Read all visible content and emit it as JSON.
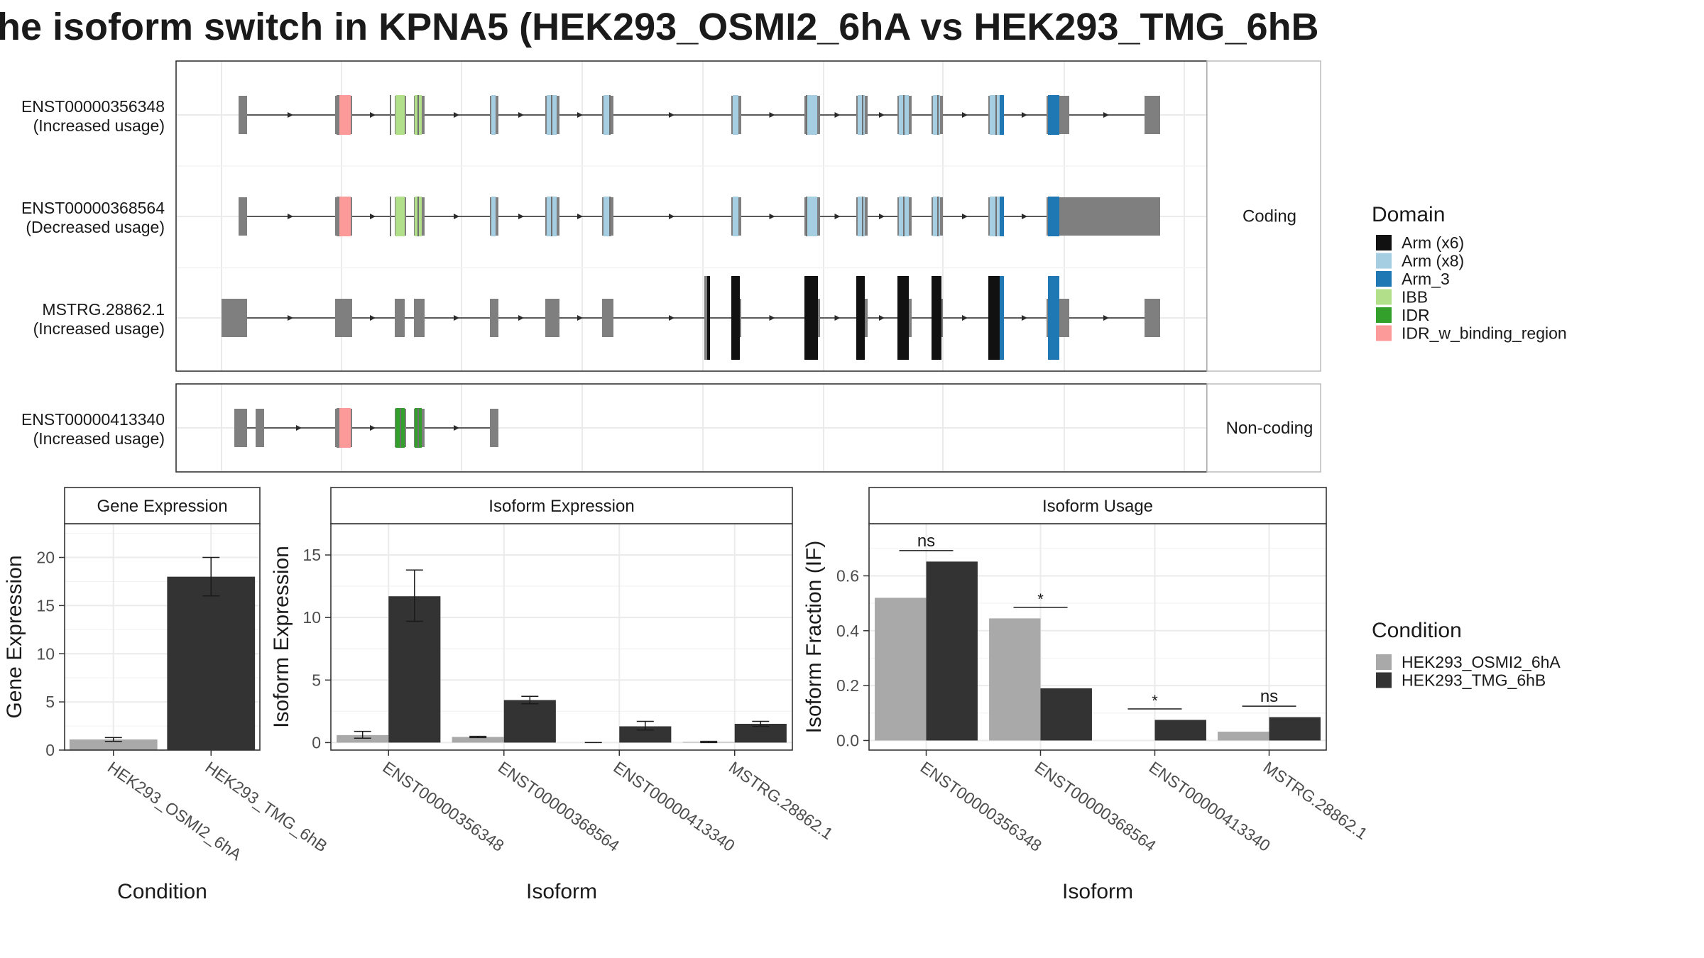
{
  "title": "he isoform switch in KPNA5 (HEK293_OSMI2_6hA vs HEK293_TMG_6hB",
  "colors": {
    "domains": {
      "Arm (x6)": "#111111",
      "Arm (x8)": "#a6cee3",
      "Arm_3": "#1f78b4",
      "IBB": "#b2df8a",
      "IDR": "#33a02c",
      "IDR_w_binding_region": "#fb9a99"
    },
    "exon": "#7f7f7f",
    "cond_a": "#a9a9a9",
    "cond_b": "#333333"
  },
  "structure": {
    "facets": [
      "Coding",
      "Non-coding"
    ],
    "isoforms": [
      {
        "id": "ENST00000356348",
        "note": "(Increased usage)"
      },
      {
        "id": "ENST00000368564",
        "note": "(Decreased usage)"
      },
      {
        "id": "MSTRG.28862.1",
        "note": "(Increased usage)"
      },
      {
        "id": "ENST00000413340",
        "note": "(Increased usage)"
      }
    ]
  },
  "legend": {
    "domain_title": "Domain",
    "domain_items": [
      "Arm (x6)",
      "Arm (x8)",
      "Arm_3",
      "IBB",
      "IDR",
      "IDR_w_binding_region"
    ],
    "condition_title": "Condition",
    "condition_items": [
      "HEK293_OSMI2_6hA",
      "HEK293_TMG_6hB"
    ]
  },
  "chart_data": [
    {
      "type": "bar",
      "title": "Gene Expression",
      "xlabel": "Condition",
      "ylabel": "Gene Expression",
      "categories": [
        "HEK293_OSMI2_6hA",
        "HEK293_TMG_6hB"
      ],
      "values": [
        1.1,
        18.0
      ],
      "error_low": [
        0.9,
        16.0
      ],
      "error_high": [
        1.3,
        20.0
      ],
      "ylim": [
        0,
        23.5
      ],
      "yticks": [
        0,
        5,
        10,
        15,
        20
      ]
    },
    {
      "type": "bar",
      "title": "Isoform Expression",
      "xlabel": "Isoform",
      "ylabel": "Isoform Expression",
      "categories": [
        "ENST00000356348",
        "ENST00000368564",
        "ENST00000413340",
        "MSTRG.28862.1"
      ],
      "series": [
        {
          "name": "HEK293_OSMI2_6hA",
          "values": [
            0.6,
            0.45,
            0.0,
            0.05
          ],
          "error_low": [
            0.35,
            0.4,
            0.0,
            0.0
          ],
          "error_high": [
            0.9,
            0.5,
            0.0,
            0.1
          ]
        },
        {
          "name": "HEK293_TMG_6hB",
          "values": [
            11.7,
            3.4,
            1.3,
            1.5
          ],
          "error_low": [
            9.7,
            3.1,
            1.0,
            1.3
          ],
          "error_high": [
            13.8,
            3.7,
            1.7,
            1.7
          ]
        }
      ],
      "ylim": [
        -0.6,
        17.5
      ],
      "yticks": [
        0,
        5,
        10,
        15
      ]
    },
    {
      "type": "bar",
      "title": "Isoform Usage",
      "xlabel": "Isoform",
      "ylabel": "Isoform Fraction (IF)",
      "categories": [
        "ENST00000356348",
        "ENST00000368564",
        "ENST00000413340",
        "MSTRG.28862.1"
      ],
      "series": [
        {
          "name": "HEK293_OSMI2_6hA",
          "values": [
            0.52,
            0.445,
            0.0,
            0.032
          ]
        },
        {
          "name": "HEK293_TMG_6hB",
          "values": [
            0.652,
            0.19,
            0.075,
            0.085
          ]
        }
      ],
      "significance": [
        "ns",
        "*",
        "*",
        "ns"
      ],
      "ylim": [
        -0.035,
        0.79
      ],
      "yticks": [
        0.0,
        0.2,
        0.4,
        0.6
      ]
    }
  ]
}
